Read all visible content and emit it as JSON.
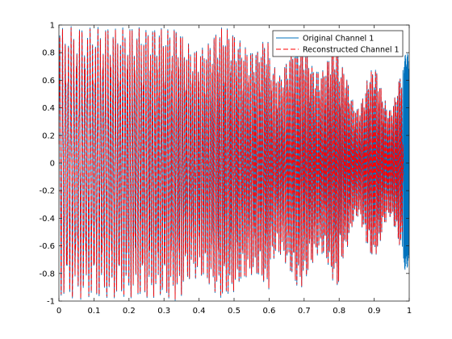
{
  "chart_data": {
    "type": "line",
    "title": "",
    "xlabel": "",
    "ylabel": "",
    "xlim": [
      0,
      1
    ],
    "ylim": [
      -1,
      1
    ],
    "xticks": [
      0,
      0.1,
      0.2,
      0.3,
      0.4,
      0.5,
      0.6,
      0.7,
      0.8,
      0.9,
      1
    ],
    "yticks": [
      -1,
      -0.8,
      -0.6,
      -0.4,
      -0.2,
      0,
      0.2,
      0.4,
      0.6,
      0.8,
      1
    ],
    "x_tick_labels": [
      "0",
      "0.1",
      "0.2",
      "0.3",
      "0.4",
      "0.5",
      "0.6",
      "0.7",
      "0.8",
      "0.9",
      "1"
    ],
    "y_tick_labels": [
      "-1",
      "-0.8",
      "-0.6",
      "-0.4",
      "-0.2",
      "0",
      "0.2",
      "0.4",
      "0.6",
      "0.8",
      "1"
    ],
    "grid": false,
    "legend_position": "top-right",
    "signal": {
      "amplitude": 1.0,
      "cycles": 120,
      "description_values": "dense oscillating waveform between -1 and 1 across x from 0 to 1"
    },
    "series": [
      {
        "name": "Original Channel 1",
        "color": "#0072BD",
        "style": "solid"
      },
      {
        "name": "Reconstructed Channel 1",
        "color": "#FF0000",
        "style": "dashed"
      }
    ]
  }
}
